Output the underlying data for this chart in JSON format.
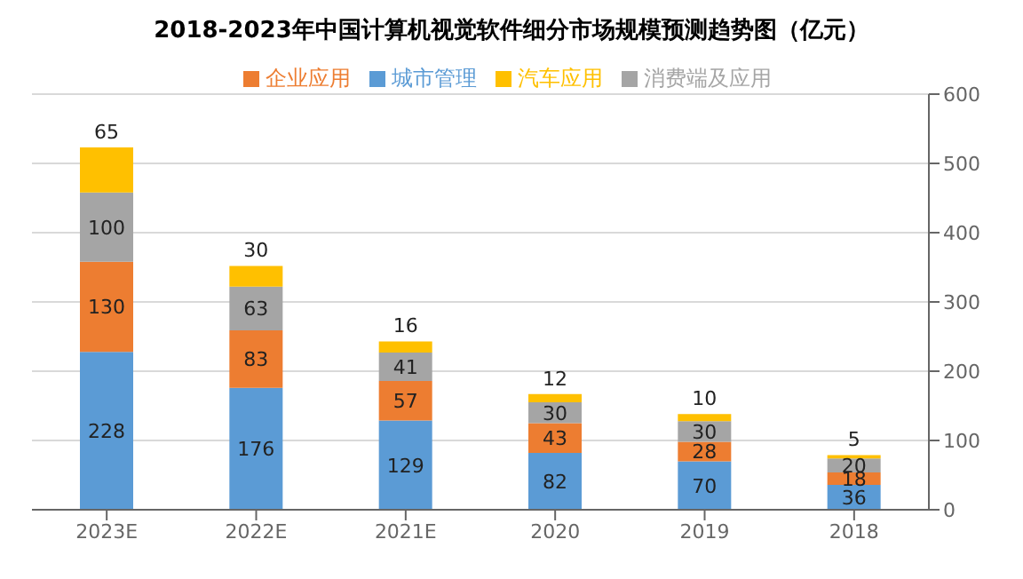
{
  "chart_data": {
    "type": "bar",
    "title": "2018-2023年中国计算机视觉软件细分市场规模预测趋势图（亿元）",
    "categories": [
      "2023E",
      "2022E",
      "2021E",
      "2020",
      "2019",
      "2018"
    ],
    "series": [
      {
        "name": "城市管理",
        "color": "#5b9bd5",
        "values": [
          228,
          176,
          129,
          82,
          70,
          36
        ]
      },
      {
        "name": "企业应用",
        "color": "#ed7d31",
        "values": [
          130,
          83,
          57,
          43,
          28,
          18
        ]
      },
      {
        "name": "消费端及应用",
        "color": "#a5a5a5",
        "values": [
          100,
          63,
          41,
          30,
          30,
          20
        ]
      },
      {
        "name": "汽车应用",
        "color": "#ffc000",
        "values": [
          65,
          30,
          16,
          12,
          10,
          5
        ]
      }
    ],
    "stacked": true,
    "data_labels": true,
    "ylim": [
      0,
      600
    ],
    "yticks": [
      0,
      100,
      200,
      300,
      400,
      500,
      600
    ],
    "grid": "y",
    "legend": "top"
  }
}
